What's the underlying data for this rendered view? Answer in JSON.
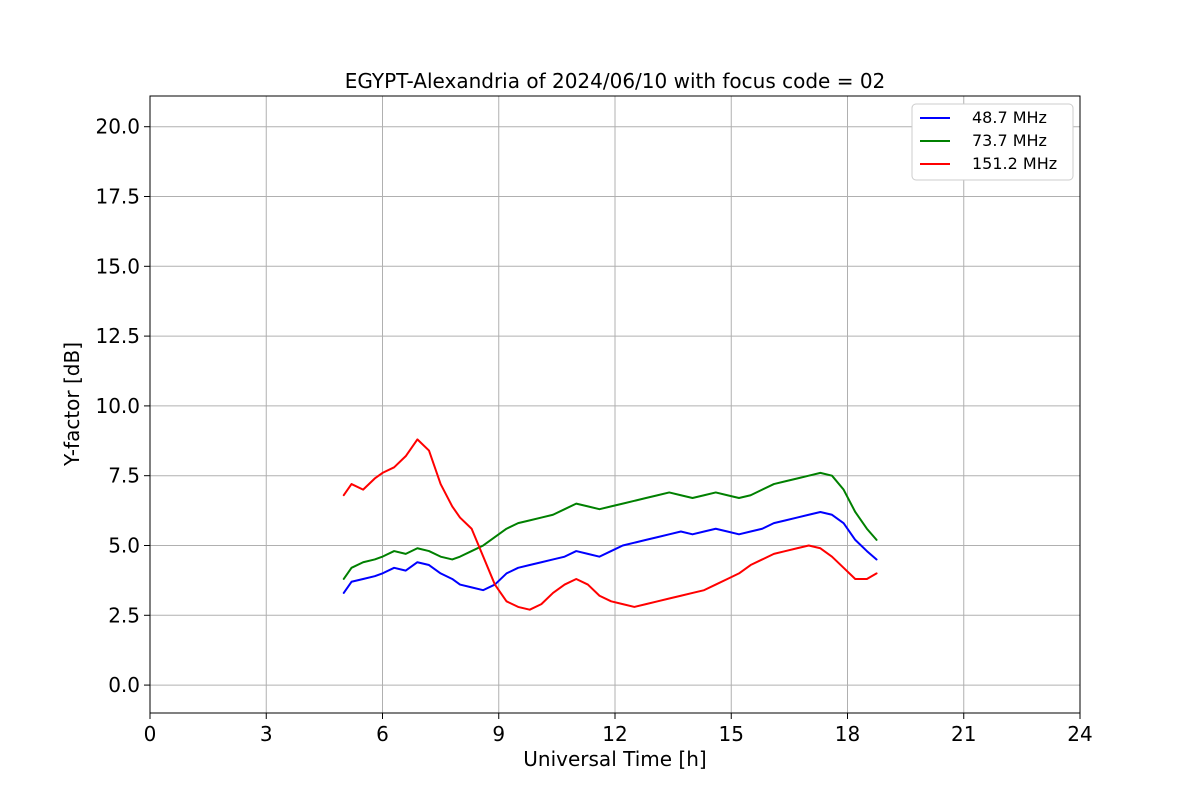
{
  "chart_data": {
    "type": "line",
    "title": "EGYPT-Alexandria of 2024/06/10 with focus code = 02",
    "xlabel": "Universal Time [h]",
    "ylabel": "Y-factor [dB]",
    "xlim": [
      0,
      24
    ],
    "ylim": [
      -1.0,
      21.1
    ],
    "x_ticks": [
      0,
      3,
      6,
      9,
      12,
      15,
      18,
      21,
      24
    ],
    "x_tick_labels": [
      "0",
      "3",
      "6",
      "9",
      "12",
      "15",
      "18",
      "21",
      "24"
    ],
    "y_ticks": [
      0.0,
      2.5,
      5.0,
      7.5,
      10.0,
      12.5,
      15.0,
      17.5,
      20.0
    ],
    "y_tick_labels": [
      "0.0",
      "2.5",
      "5.0",
      "7.5",
      "10.0",
      "12.5",
      "15.0",
      "17.5",
      "20.0"
    ],
    "grid": true,
    "legend_position": "top-right",
    "series": [
      {
        "name": "48.7 MHz",
        "color": "#0000ff",
        "x": [
          5.0,
          5.2,
          5.5,
          5.8,
          6.0,
          6.3,
          6.6,
          6.9,
          7.2,
          7.5,
          7.8,
          8.0,
          8.3,
          8.6,
          8.9,
          9.2,
          9.5,
          9.8,
          10.1,
          10.4,
          10.7,
          11.0,
          11.3,
          11.6,
          11.9,
          12.2,
          12.5,
          12.8,
          13.1,
          13.4,
          13.7,
          14.0,
          14.3,
          14.6,
          14.9,
          15.2,
          15.5,
          15.8,
          16.1,
          16.4,
          16.7,
          17.0,
          17.3,
          17.6,
          17.9,
          18.2,
          18.5,
          18.75
        ],
        "y": [
          3.3,
          3.7,
          3.8,
          3.9,
          4.0,
          4.2,
          4.1,
          4.4,
          4.3,
          4.0,
          3.8,
          3.6,
          3.5,
          3.4,
          3.6,
          4.0,
          4.2,
          4.3,
          4.4,
          4.5,
          4.6,
          4.8,
          4.7,
          4.6,
          4.8,
          5.0,
          5.1,
          5.2,
          5.3,
          5.4,
          5.5,
          5.4,
          5.5,
          5.6,
          5.5,
          5.4,
          5.5,
          5.6,
          5.8,
          5.9,
          6.0,
          6.1,
          6.2,
          6.1,
          5.8,
          5.2,
          4.8,
          4.5
        ]
      },
      {
        "name": "73.7 MHz",
        "color": "#008000",
        "x": [
          5.0,
          5.2,
          5.5,
          5.8,
          6.0,
          6.3,
          6.6,
          6.9,
          7.2,
          7.5,
          7.8,
          8.0,
          8.3,
          8.6,
          8.9,
          9.2,
          9.5,
          9.8,
          10.1,
          10.4,
          10.7,
          11.0,
          11.3,
          11.6,
          11.9,
          12.2,
          12.5,
          12.8,
          13.1,
          13.4,
          13.7,
          14.0,
          14.3,
          14.6,
          14.9,
          15.2,
          15.5,
          15.8,
          16.1,
          16.4,
          16.7,
          17.0,
          17.3,
          17.6,
          17.9,
          18.2,
          18.5,
          18.75
        ],
        "y": [
          3.8,
          4.2,
          4.4,
          4.5,
          4.6,
          4.8,
          4.7,
          4.9,
          4.8,
          4.6,
          4.5,
          4.6,
          4.8,
          5.0,
          5.3,
          5.6,
          5.8,
          5.9,
          6.0,
          6.1,
          6.3,
          6.5,
          6.4,
          6.3,
          6.4,
          6.5,
          6.6,
          6.7,
          6.8,
          6.9,
          6.8,
          6.7,
          6.8,
          6.9,
          6.8,
          6.7,
          6.8,
          7.0,
          7.2,
          7.3,
          7.4,
          7.5,
          7.6,
          7.5,
          7.0,
          6.2,
          5.6,
          5.2
        ]
      },
      {
        "name": "151.2 MHz",
        "color": "#ff0000",
        "x": [
          5.0,
          5.2,
          5.5,
          5.8,
          6.0,
          6.3,
          6.6,
          6.9,
          7.2,
          7.5,
          7.8,
          8.0,
          8.3,
          8.6,
          8.9,
          9.2,
          9.5,
          9.8,
          10.1,
          10.4,
          10.7,
          11.0,
          11.3,
          11.6,
          11.9,
          12.2,
          12.5,
          12.8,
          13.1,
          13.4,
          13.7,
          14.0,
          14.3,
          14.6,
          14.9,
          15.2,
          15.5,
          15.8,
          16.1,
          16.4,
          16.7,
          17.0,
          17.3,
          17.6,
          17.9,
          18.2,
          18.5,
          18.75
        ],
        "y": [
          6.8,
          7.2,
          7.0,
          7.4,
          7.6,
          7.8,
          8.2,
          8.8,
          8.4,
          7.2,
          6.4,
          6.0,
          5.6,
          4.6,
          3.6,
          3.0,
          2.8,
          2.7,
          2.9,
          3.3,
          3.6,
          3.8,
          3.6,
          3.2,
          3.0,
          2.9,
          2.8,
          2.9,
          3.0,
          3.1,
          3.2,
          3.3,
          3.4,
          3.6,
          3.8,
          4.0,
          4.3,
          4.5,
          4.7,
          4.8,
          4.9,
          5.0,
          4.9,
          4.6,
          4.2,
          3.8,
          3.8,
          4.0
        ]
      }
    ],
    "annotations": []
  }
}
